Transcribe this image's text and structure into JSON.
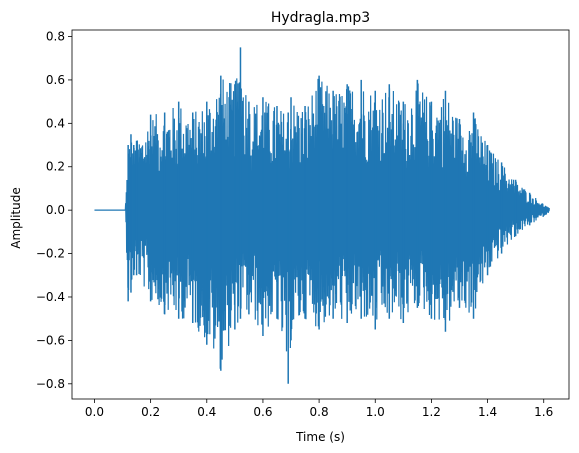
{
  "chart_data": {
    "type": "line",
    "title": "Hydragla.mp3",
    "xlabel": "Time (s)",
    "ylabel": "Amplitude",
    "xlim": [
      -0.08,
      1.69
    ],
    "ylim": [
      -0.87,
      0.83
    ],
    "xticks": [
      0.0,
      0.2,
      0.4,
      0.6,
      0.8,
      1.0,
      1.2,
      1.4,
      1.6
    ],
    "xtick_labels": [
      "0.0",
      "0.2",
      "0.4",
      "0.6",
      "0.8",
      "1.0",
      "1.2",
      "1.4",
      "1.6"
    ],
    "yticks": [
      -0.8,
      -0.6,
      -0.4,
      -0.2,
      0.0,
      0.2,
      0.4,
      0.6,
      0.8
    ],
    "ytick_labels": [
      "−0.8",
      "−0.6",
      "−0.4",
      "−0.2",
      "0.0",
      "0.2",
      "0.4",
      "0.6",
      "0.8"
    ],
    "grid": false,
    "color": "#1f77b4",
    "series": [
      {
        "x": [
          0.0,
          0.11,
          0.12,
          0.13,
          0.14,
          0.15,
          0.2,
          0.25,
          0.3,
          0.35,
          0.4,
          0.45,
          0.5,
          0.52,
          0.55,
          0.6,
          0.65,
          0.69,
          0.7,
          0.75,
          0.8,
          0.85,
          0.9,
          0.95,
          1.0,
          1.05,
          1.1,
          1.15,
          1.2,
          1.25,
          1.3,
          1.35,
          1.4,
          1.45,
          1.5,
          1.55,
          1.6,
          1.62
        ],
        "max": [
          0.0,
          0.01,
          0.3,
          0.35,
          0.3,
          0.32,
          0.44,
          0.45,
          0.5,
          0.45,
          0.5,
          0.62,
          0.58,
          0.75,
          0.5,
          0.52,
          0.48,
          0.45,
          0.52,
          0.48,
          0.62,
          0.55,
          0.58,
          0.6,
          0.55,
          0.58,
          0.5,
          0.6,
          0.5,
          0.55,
          0.42,
          0.45,
          0.3,
          0.22,
          0.14,
          0.08,
          0.03,
          0.01
        ],
        "min": [
          0.0,
          -0.01,
          -0.42,
          -0.38,
          -0.3,
          -0.3,
          -0.42,
          -0.48,
          -0.5,
          -0.52,
          -0.62,
          -0.74,
          -0.55,
          -0.5,
          -0.48,
          -0.58,
          -0.5,
          -0.8,
          -0.6,
          -0.5,
          -0.55,
          -0.5,
          -0.52,
          -0.5,
          -0.55,
          -0.5,
          -0.52,
          -0.45,
          -0.5,
          -0.56,
          -0.45,
          -0.5,
          -0.3,
          -0.2,
          -0.12,
          -0.07,
          -0.03,
          -0.01
        ]
      }
    ]
  }
}
